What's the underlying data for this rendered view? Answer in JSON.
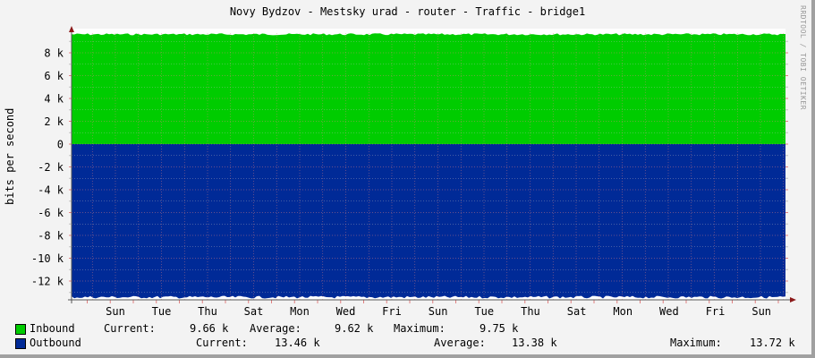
{
  "title": "Novy Bydzov - Mestsky urad - router - Traffic - bridge1",
  "watermark": "RRDTOOL / TOBI OETIKER",
  "colors": {
    "background": "#f3f3f3",
    "plot_background": "#ffffff",
    "inbound": "#00cc00",
    "outbound": "#002a97",
    "grid_major": "#e08080",
    "grid_minor": "#c0c0c0",
    "axis": "#555555",
    "arrow": "#8b1a1a"
  },
  "chart_data": {
    "type": "area",
    "title": "Novy Bydzov - Mestsky urad - router - Traffic - bridge1",
    "xlabel": "",
    "ylabel": "bits per second",
    "ylim": [
      -14000,
      10000
    ],
    "yticks": [
      "8 k",
      "6 k",
      "4 k",
      "2 k",
      "0",
      "-2 k",
      "-4 k",
      "-6 k",
      "-8 k",
      "-10 k",
      "-12 k"
    ],
    "xticks": [
      "Sun",
      "Tue",
      "Thu",
      "Sat",
      "Mon",
      "Wed",
      "Fri",
      "Sun",
      "Tue",
      "Thu",
      "Sat",
      "Mon",
      "Wed",
      "Fri",
      "Sun"
    ],
    "grid": true,
    "legend_position": "bottom",
    "series": [
      {
        "name": "Inbound",
        "color": "#00cc00",
        "approx_level": 9620,
        "current": "9.66 k",
        "average": "9.62 k",
        "maximum": "9.75 k"
      },
      {
        "name": "Outbound",
        "color": "#002a97",
        "approx_level": -13380,
        "current": "13.46 k",
        "average": "13.38 k",
        "maximum": "13.72 k",
        "plotted_negative": true
      }
    ]
  },
  "legend": {
    "inbound": {
      "label": "Inbound",
      "current_label": "Current:",
      "current": "9.66 k",
      "average_label": "Average:",
      "average": "9.62 k",
      "maximum_label": "Maximum:",
      "maximum": "9.75 k"
    },
    "outbound": {
      "label": "Outbound",
      "current_label": "Current:",
      "current": "13.46 k",
      "average_label": "Average:",
      "average": "13.38 k",
      "maximum_label": "Maximum:",
      "maximum": "13.72 k"
    }
  }
}
